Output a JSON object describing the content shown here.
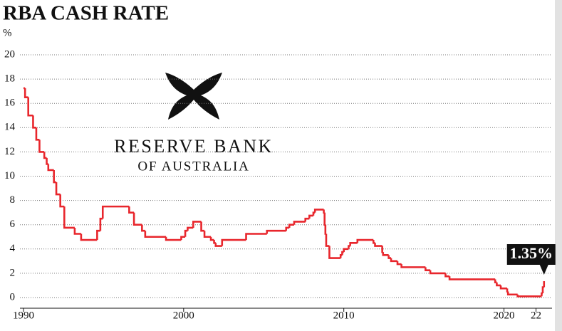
{
  "chart_data": {
    "type": "line",
    "step": "post",
    "title": "RBA CASH RATE",
    "y_unit": "%",
    "logo_text": [
      "RESERVE BANK",
      "OF AUSTRALIA"
    ],
    "annotation": "1.35%",
    "grid": true,
    "xlim": [
      1989.78,
      2023.0
    ],
    "xticks": [
      1990,
      2000,
      2010,
      2020,
      {
        "value": 2022,
        "label": "22"
      }
    ],
    "ylim": [
      0,
      20
    ],
    "yticks": [
      0,
      2,
      4,
      6,
      8,
      10,
      12,
      14,
      16,
      18,
      20
    ],
    "series": [
      {
        "name": "Cash rate",
        "color": "#e8262c",
        "x": [
          1990.0,
          1990.1,
          1990.3,
          1990.6,
          1990.8,
          1991.0,
          1991.3,
          1991.45,
          1991.55,
          1991.9,
          1992.05,
          1992.3,
          1992.55,
          1993.2,
          1993.6,
          1994.6,
          1994.8,
          1994.95,
          1996.6,
          1996.9,
          1997.4,
          1997.6,
          1998.9,
          1999.85,
          2000.1,
          2000.25,
          2000.6,
          2001.1,
          2001.3,
          2001.7,
          2001.9,
          2002.0,
          2002.4,
          2003.9,
          2005.2,
          2006.4,
          2006.6,
          2006.9,
          2007.6,
          2007.85,
          2008.1,
          2008.2,
          2008.75,
          2008.8,
          2008.85,
          2008.9,
          2009.1,
          2009.8,
          2009.9,
          2010.0,
          2010.3,
          2010.4,
          2010.85,
          2011.85,
          2011.95,
          2012.4,
          2012.45,
          2012.8,
          2012.95,
          2013.35,
          2013.6,
          2015.1,
          2015.4,
          2016.35,
          2016.6,
          2019.45,
          2019.55,
          2019.8,
          2020.2,
          2020.25,
          2020.85,
          2022.35,
          2022.42,
          2022.5
        ],
        "values": [
          17.25,
          16.5,
          15.0,
          14.0,
          13.0,
          12.0,
          11.5,
          11.0,
          10.5,
          9.5,
          8.5,
          7.5,
          5.75,
          5.25,
          4.75,
          5.5,
          6.5,
          7.5,
          7.0,
          6.0,
          5.5,
          5.0,
          4.75,
          5.0,
          5.5,
          5.75,
          6.25,
          5.5,
          5.0,
          4.75,
          4.5,
          4.25,
          4.75,
          5.25,
          5.5,
          5.75,
          6.0,
          6.25,
          6.5,
          6.75,
          7.0,
          7.25,
          7.0,
          6.0,
          5.25,
          4.25,
          3.25,
          3.5,
          3.75,
          4.0,
          4.25,
          4.5,
          4.75,
          4.5,
          4.25,
          3.75,
          3.5,
          3.25,
          3.0,
          2.75,
          2.5,
          2.25,
          2.0,
          1.75,
          1.5,
          1.25,
          1.0,
          0.75,
          0.5,
          0.25,
          0.1,
          0.35,
          0.85,
          1.35
        ]
      }
    ]
  }
}
